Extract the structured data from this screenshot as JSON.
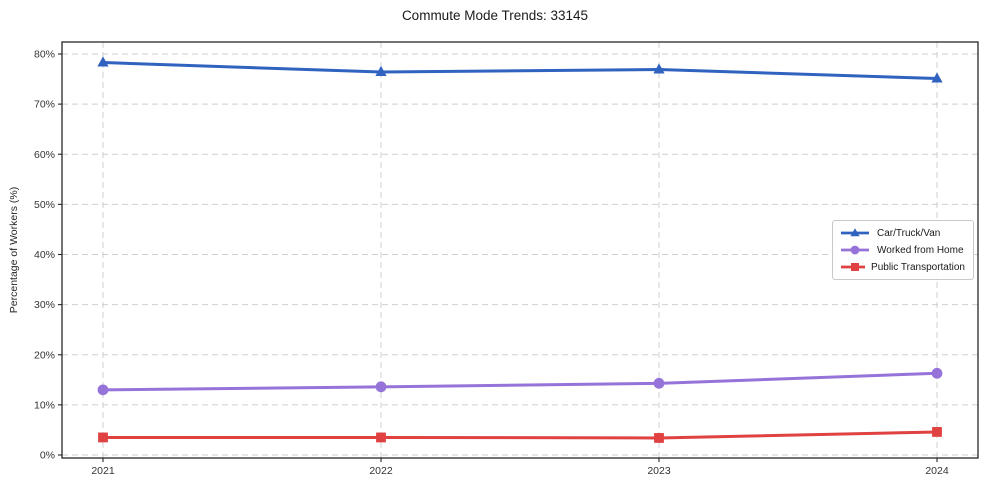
{
  "title": "Commute Mode Trends: 33145",
  "axes": {
    "ylabel": "Percentage of Workers (%)",
    "y_tick_labels": [
      "0%",
      "10%",
      "20%",
      "30%",
      "40%",
      "50%",
      "60%",
      "70%",
      "80%"
    ],
    "y_tick_values": [
      0,
      10,
      20,
      30,
      40,
      50,
      60,
      70,
      80
    ],
    "x_tick_labels": [
      "2021",
      "2022",
      "2023",
      "2024"
    ]
  },
  "colors": {
    "grid": "#cfcfcf",
    "spine": "#262626",
    "tick_text": "#333333",
    "legend_border": "#c9c9c9",
    "background": "#ffffff"
  },
  "chart_data": {
    "type": "line",
    "title": "Commute Mode Trends: 33145",
    "xlabel": "",
    "ylabel": "Percentage of Workers (%)",
    "categories": [
      "2021",
      "2022",
      "2023",
      "2024"
    ],
    "ylim": [
      0,
      80
    ],
    "y_tick_step": 10,
    "grid": true,
    "grid_style": "dashed",
    "legend_position": "center right",
    "series": [
      {
        "name": "Car/Truck/Van",
        "marker": "triangle",
        "color": "#3062c0",
        "values": [
          78.3,
          76.4,
          76.9,
          75.1
        ]
      },
      {
        "name": "Worked from Home",
        "marker": "circle",
        "color": "#9673d9",
        "values": [
          13.0,
          13.6,
          14.3,
          16.3
        ]
      },
      {
        "name": "Public Transportation",
        "marker": "square",
        "color": "#e04141",
        "values": [
          3.5,
          3.5,
          3.4,
          4.6
        ]
      }
    ]
  }
}
